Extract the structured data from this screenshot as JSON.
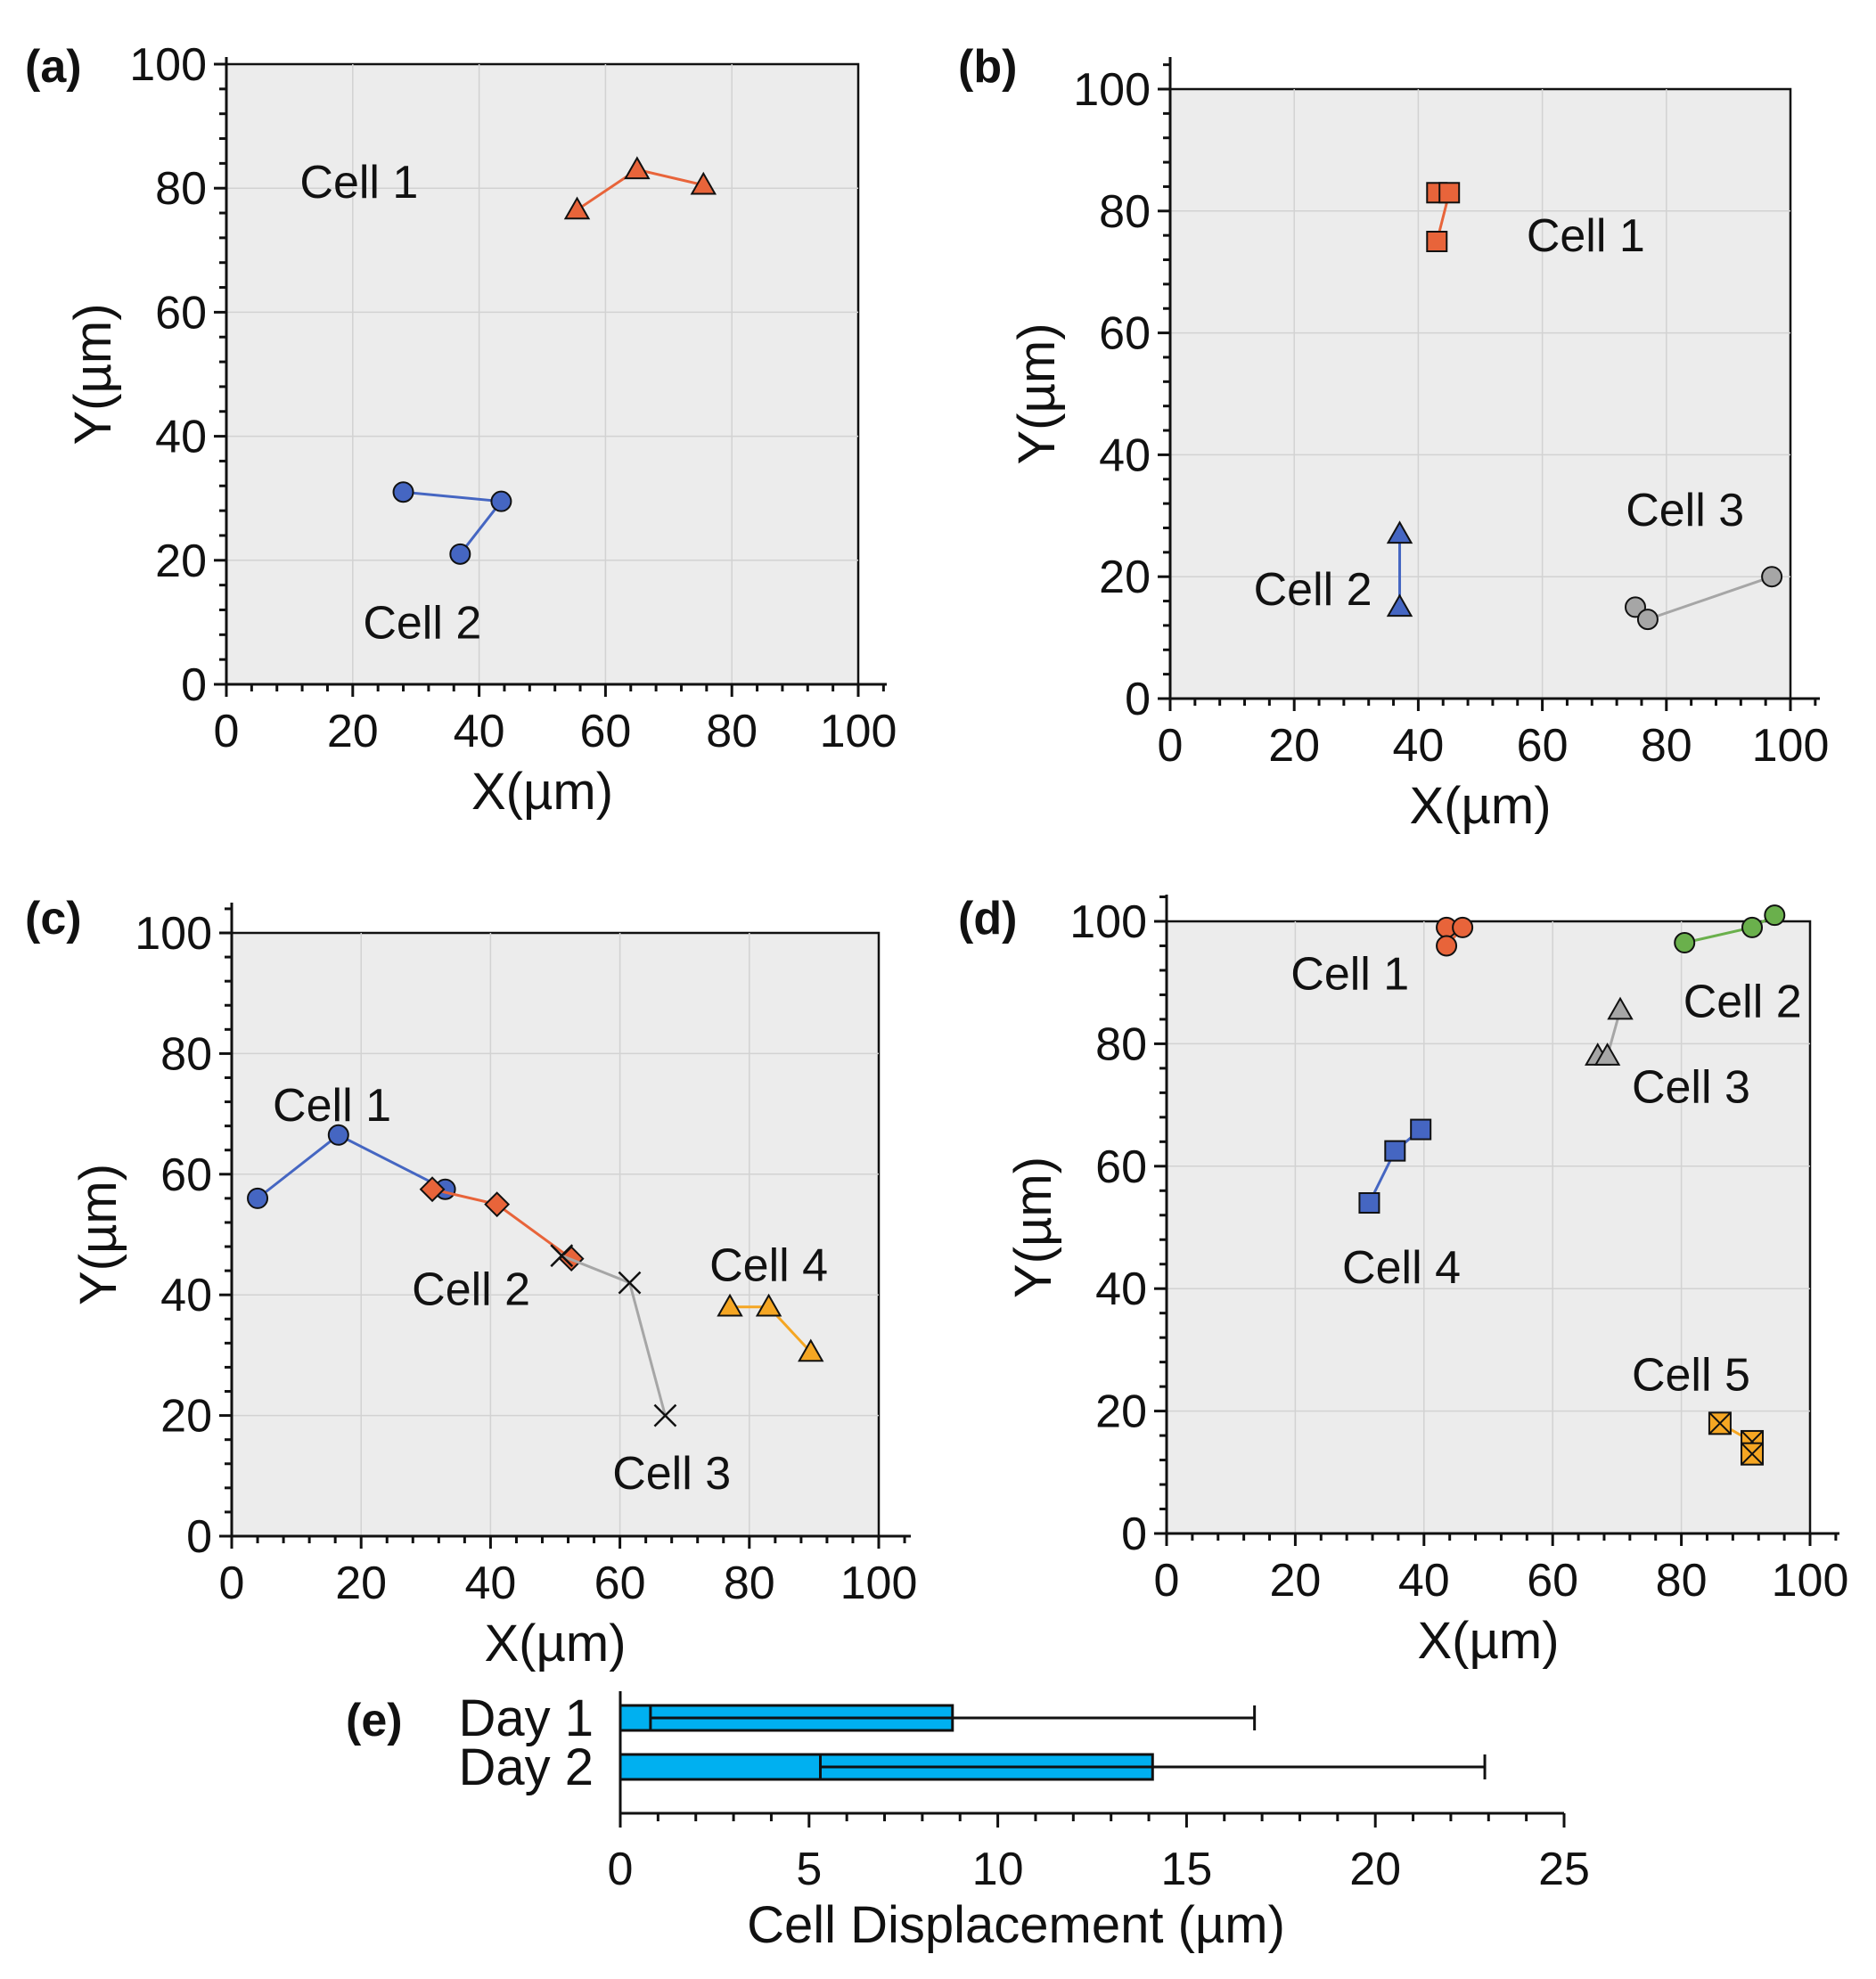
{
  "chart_data": [
    {
      "type": "scatter",
      "panel": "(a)",
      "xlabel": "X(µm)",
      "ylabel": "Y(µm)",
      "xlim": [
        0,
        100
      ],
      "ylim": [
        0,
        100
      ],
      "xticks": [
        "0",
        "20",
        "40",
        "60",
        "80",
        "100"
      ],
      "yticks": [
        "0",
        "20",
        "40",
        "60",
        "80",
        "100"
      ],
      "grid": true,
      "series": [
        {
          "name": "Cell 1",
          "marker": "triangle",
          "color": "#e8643a",
          "x": [
            55.5,
            65,
            75.5
          ],
          "y": [
            76.5,
            83,
            80.5
          ],
          "label_at": [
            21,
            81
          ]
        },
        {
          "name": "Cell 2",
          "marker": "circle",
          "color": "#4566c2",
          "x": [
            28,
            43.5,
            37
          ],
          "y": [
            31,
            29.5,
            21
          ],
          "label_at": [
            31,
            10
          ]
        }
      ]
    },
    {
      "type": "scatter",
      "panel": "(b)",
      "xlabel": "X(µm)",
      "ylabel": "Y(µm)",
      "xlim": [
        0,
        100
      ],
      "ylim": [
        0,
        100
      ],
      "xticks": [
        "0",
        "20",
        "40",
        "60",
        "80",
        "100"
      ],
      "yticks": [
        "0",
        "20",
        "40",
        "60",
        "80",
        "100"
      ],
      "grid": true,
      "series": [
        {
          "name": "Cell 1",
          "marker": "square",
          "color": "#e8643a",
          "x": [
            43,
            45,
            43
          ],
          "y": [
            83,
            83,
            75
          ],
          "label_at": [
            67,
            76
          ]
        },
        {
          "name": "Cell 2",
          "marker": "triangle",
          "color": "#4566c2",
          "x": [
            37,
            37
          ],
          "y": [
            27,
            15
          ],
          "label_at": [
            23,
            18
          ]
        },
        {
          "name": "Cell 3",
          "marker": "circle",
          "color": "#a6a6a6",
          "x": [
            75,
            77,
            97
          ],
          "y": [
            15,
            13,
            20
          ],
          "label_at": [
            83,
            31
          ]
        }
      ]
    },
    {
      "type": "scatter",
      "panel": "(c)",
      "xlabel": "X(µm)",
      "ylabel": "Y(µm)",
      "xlim": [
        0,
        100
      ],
      "ylim": [
        0,
        100
      ],
      "xticks": [
        "0",
        "20",
        "40",
        "60",
        "80",
        "100"
      ],
      "yticks": [
        "0",
        "20",
        "40",
        "60",
        "80",
        "100"
      ],
      "grid": true,
      "series": [
        {
          "name": "Cell 1",
          "marker": "circle",
          "color": "#4566c2",
          "x": [
            4,
            16.5,
            33
          ],
          "y": [
            56,
            66.5,
            57.5
          ],
          "label_at": [
            15.5,
            71.5
          ]
        },
        {
          "name": "Cell 2",
          "marker": "diamond",
          "color": "#e8643a",
          "x": [
            31,
            41,
            52.5
          ],
          "y": [
            57.5,
            55,
            46
          ],
          "label_at": [
            37,
            41
          ]
        },
        {
          "name": "Cell 3",
          "marker": "x",
          "color": "#a6a6a6",
          "x": [
            51,
            61.5,
            67
          ],
          "y": [
            46.5,
            42,
            20
          ],
          "label_at": [
            68,
            10.5
          ]
        },
        {
          "name": "Cell 4",
          "marker": "triangle",
          "color": "#f5a623",
          "x": [
            77,
            83,
            89.5
          ],
          "y": [
            38,
            38,
            30.5
          ],
          "label_at": [
            83,
            45
          ]
        }
      ]
    },
    {
      "type": "scatter",
      "panel": "(d)",
      "xlabel": "X(µm)",
      "ylabel": "Y(µm)",
      "xlim": [
        0,
        100
      ],
      "ylim": [
        0,
        100
      ],
      "xticks": [
        "0",
        "20",
        "40",
        "60",
        "80",
        "100"
      ],
      "yticks": [
        "0",
        "20",
        "40",
        "60",
        "80",
        "100"
      ],
      "grid": true,
      "series": [
        {
          "name": "Cell 1",
          "marker": "circle",
          "color": "#e8643a",
          "x": [
            43.5,
            46,
            43.5
          ],
          "y": [
            99,
            99,
            96
          ],
          "label_at": [
            28.5,
            91.5
          ]
        },
        {
          "name": "Cell 2",
          "marker": "circle",
          "color": "#6ab04c",
          "x": [
            80.5,
            91,
            94.5
          ],
          "y": [
            96.5,
            99,
            101
          ],
          "label_at": [
            89.5,
            87
          ]
        },
        {
          "name": "Cell 3",
          "marker": "triangle",
          "color": "#a6a6a6",
          "x": [
            67,
            68.5,
            70.5
          ],
          "y": [
            78,
            78,
            85.5
          ],
          "label_at": [
            81.5,
            73
          ]
        },
        {
          "name": "Cell 4",
          "marker": "square",
          "color": "#4566c2",
          "x": [
            31.5,
            35.5,
            39.5
          ],
          "y": [
            54,
            62.5,
            66
          ],
          "label_at": [
            36.5,
            43.5
          ]
        },
        {
          "name": "Cell 5",
          "marker": "square-x",
          "color": "#f5a623",
          "x": [
            86,
            91,
            91
          ],
          "y": [
            18,
            15,
            13
          ],
          "label_at": [
            81.5,
            26
          ]
        }
      ]
    },
    {
      "type": "bar",
      "panel": "(e)",
      "orientation": "horizontal",
      "categories": [
        "Day 1",
        "Day 2"
      ],
      "values": [
        8.8,
        14.1
      ],
      "lower_error": [
        0.8,
        5.3
      ],
      "upper_error": [
        16.8,
        22.9
      ],
      "xlabel": "Cell Displacement (µm)",
      "xlim": [
        0,
        25
      ],
      "xticks": [
        "0",
        "5",
        "10",
        "15",
        "20",
        "25"
      ],
      "bar_color": "#00b0f0"
    }
  ]
}
